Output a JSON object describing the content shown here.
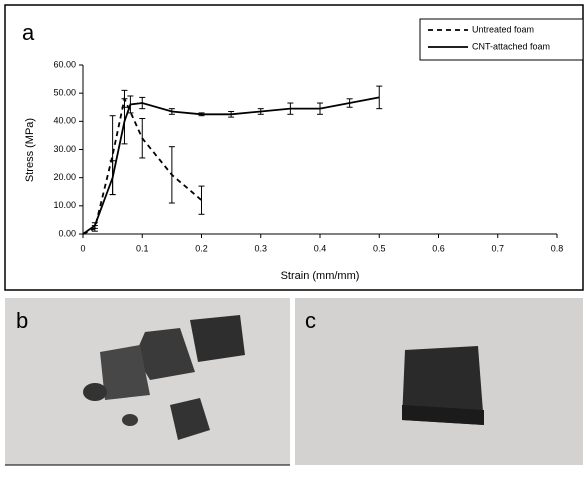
{
  "chart_data": {
    "type": "line",
    "panel_label": "a",
    "x_label": "Strain (mm/mm)",
    "y_label": "Stress (MPa)",
    "xlim": [
      0,
      0.8
    ],
    "xticks": [
      0,
      0.1,
      0.2,
      0.3,
      0.4,
      0.5,
      0.6,
      0.7,
      0.8
    ],
    "ylim": [
      0,
      60
    ],
    "yticks": [
      {
        "value": 0,
        "label": "0.00"
      },
      {
        "value": 10,
        "label": "10.00"
      },
      {
        "value": 20,
        "label": "20.00"
      },
      {
        "value": 30,
        "label": "30.00"
      },
      {
        "value": 40,
        "label": "40.00"
      },
      {
        "value": 50,
        "label": "50.00"
      },
      {
        "value": 60,
        "label": "60.00"
      }
    ],
    "legend": "upper right",
    "series": [
      {
        "name": "Untreated foam",
        "color": "#000000",
        "dashed": true,
        "x": [
          0,
          0.02,
          0.05,
          0.07,
          0.1,
          0.15,
          0.2
        ],
        "values": [
          0,
          2,
          28,
          48,
          34,
          21,
          12
        ],
        "errors": [
          0,
          1,
          14,
          3,
          7,
          10,
          5
        ]
      },
      {
        "name": "CNT-attached foam",
        "color": "#000000",
        "dashed": false,
        "x": [
          0,
          0.02,
          0.05,
          0.07,
          0.08,
          0.1,
          0.15,
          0.2,
          0.25,
          0.3,
          0.35,
          0.4,
          0.45,
          0.5
        ],
        "values": [
          0,
          3,
          20,
          40,
          46,
          46.5,
          43.5,
          42.5,
          42.5,
          43.5,
          44.5,
          44.5,
          46.5,
          48.5
        ],
        "errors": [
          0,
          1,
          6,
          8,
          3,
          2,
          1,
          0.5,
          1,
          1,
          2,
          2,
          1.5,
          4
        ]
      }
    ]
  },
  "photos": [
    {
      "label": "b"
    },
    {
      "label": "c"
    }
  ]
}
